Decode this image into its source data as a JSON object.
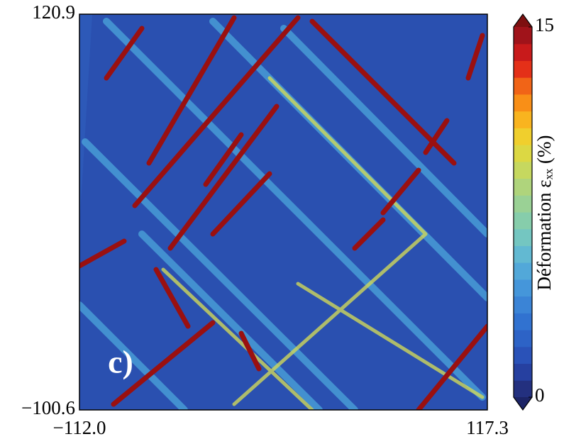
{
  "chart_data": {
    "type": "heatmap",
    "panel_label": "c)",
    "xlim": [
      -112.0,
      117.3
    ],
    "xticks": [
      {
        "value": -112.0,
        "label": "−112.0"
      },
      117.3
    ],
    "ylim": [
      -100.6,
      120.9
    ],
    "yticks": [
      {
        "value": -100.6,
        "label": "−100.6"
      },
      120.9
    ],
    "colorbar": {
      "label": "Déformation εₓₓ (%)",
      "lim": [
        0,
        15
      ],
      "ticks": [
        0,
        15
      ],
      "colors": [
        "#23307f",
        "#2640a0",
        "#2a52b8",
        "#2d63c6",
        "#3172d0",
        "#3b84d6",
        "#4596da",
        "#52a8d9",
        "#62b9d2",
        "#74c6c1",
        "#86cdab",
        "#9ad195",
        "#afd47c",
        "#c6d85f",
        "#dcd843",
        "#f0cf2d",
        "#f9b41f",
        "#f98f17",
        "#f16417",
        "#e43018",
        "#c81a1b",
        "#a0131a"
      ],
      "under_color": "#1c2466",
      "over_color": "#7e1010"
    }
  }
}
